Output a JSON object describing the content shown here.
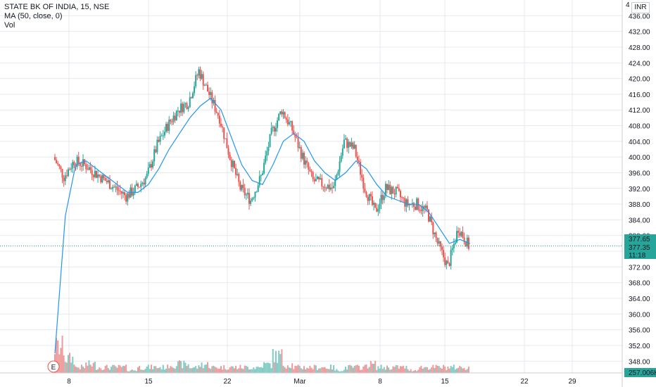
{
  "legend": {
    "symbol_line": "STATE BK OF INDIA, 15, NSE",
    "ma_line": "MA (50, close, 0)",
    "vol_line": "Vol"
  },
  "currency": "INR",
  "top_partial_label": "4",
  "price_labels": {
    "upper": "377.65",
    "last": "377.35",
    "countdown": "11:18",
    "volume": "257.006K"
  },
  "earnings_marker": "E",
  "colors": {
    "up": "#26a69a",
    "down": "#ef5350",
    "ma": "#2196f3",
    "vol_up": "#80cbc4",
    "vol_down": "#ef9a9a",
    "grid": "#e6e9ef",
    "axis_text": "#131722",
    "last_price": "#26a69a"
  },
  "chart_data": {
    "type": "line",
    "title": "STATE BK OF INDIA, 15, NSE",
    "xlabel": "",
    "ylabel": "",
    "x_ticks": [
      "8",
      "15",
      "22",
      "Mar",
      "8",
      "15",
      "22",
      "29"
    ],
    "y_ticks": [
      "348.00",
      "352.00",
      "356.00",
      "360.00",
      "364.00",
      "368.00",
      "372.00",
      "376.00",
      "380.00",
      "384.00",
      "388.00",
      "392.00",
      "396.00",
      "400.00",
      "404.00",
      "408.00",
      "412.00",
      "416.00",
      "420.00",
      "424.00",
      "428.00",
      "432.00",
      "436.00"
    ],
    "ylim": [
      345,
      440
    ],
    "grid": true,
    "series": [
      {
        "name": "STATE BK OF INDIA",
        "kind": "candles",
        "x": [
          "Feb 5",
          "Feb 6",
          "Feb 7",
          "Feb 8",
          "Feb 9",
          "Feb 10",
          "Feb 11",
          "Feb 12",
          "Feb 13",
          "Feb 14",
          "Feb 15",
          "Feb 16",
          "Feb 17",
          "Feb 18",
          "Feb 19",
          "Feb 20",
          "Feb 21",
          "Feb 22",
          "Feb 23",
          "Feb 24",
          "Feb 25",
          "Feb 26",
          "Feb 27",
          "Feb 28",
          "Mar 1",
          "Mar 2",
          "Mar 3",
          "Mar 4",
          "Mar 5",
          "Mar 6",
          "Mar 7",
          "Mar 8",
          "Mar 9",
          "Mar 10",
          "Mar 11",
          "Mar 12",
          "Mar 13",
          "Mar 14",
          "Mar 15",
          "Mar 16",
          "Mar 17"
        ],
        "values": [
          400,
          395,
          399,
          398,
          396,
          394,
          392,
          390,
          392,
          395,
          403,
          408,
          412,
          414,
          422,
          416,
          410,
          400,
          392,
          389,
          395,
          406,
          412,
          407,
          400,
          394,
          393,
          392,
          404,
          402,
          392,
          386,
          392,
          391,
          388,
          388,
          386,
          378,
          372,
          382,
          377.35
        ]
      },
      {
        "name": "MA (50, close, 0)",
        "kind": "line",
        "x": [
          "Feb 5",
          "Feb 6",
          "Feb 7",
          "Feb 8",
          "Feb 9",
          "Feb 10",
          "Feb 11",
          "Feb 12",
          "Feb 13",
          "Feb 14",
          "Feb 15",
          "Feb 16",
          "Feb 17",
          "Feb 18",
          "Feb 19",
          "Feb 20",
          "Feb 21",
          "Feb 22",
          "Feb 23",
          "Feb 24",
          "Feb 25",
          "Feb 26",
          "Feb 27",
          "Feb 28",
          "Mar 1",
          "Mar 2",
          "Mar 3",
          "Mar 4",
          "Mar 5",
          "Mar 6",
          "Mar 7",
          "Mar 8",
          "Mar 9",
          "Mar 10",
          "Mar 11",
          "Mar 12",
          "Mar 13",
          "Mar 14",
          "Mar 15",
          "Mar 16",
          "Mar 17"
        ],
        "values": [
          350,
          385,
          398,
          399,
          397,
          395,
          393,
          391,
          391,
          393,
          397,
          402,
          406,
          410,
          413,
          415,
          412,
          405,
          398,
          394,
          393,
          398,
          404,
          406,
          404,
          399,
          396,
          394,
          396,
          399,
          397,
          393,
          390,
          389,
          388,
          388,
          386,
          382,
          378,
          379,
          378
        ]
      }
    ],
    "volume_series": {
      "name": "Vol",
      "x": [
        "Feb 5",
        "Feb 6",
        "Feb 7",
        "Feb 8",
        "Feb 9",
        "Feb 10",
        "Feb 11",
        "Feb 12",
        "Feb 13",
        "Feb 14",
        "Feb 15",
        "Feb 16",
        "Feb 17",
        "Feb 18",
        "Feb 19",
        "Feb 20",
        "Feb 21",
        "Feb 22",
        "Feb 23",
        "Feb 24",
        "Feb 25",
        "Feb 26",
        "Feb 27",
        "Feb 28",
        "Mar 1",
        "Mar 2",
        "Mar 3",
        "Mar 4",
        "Mar 5",
        "Mar 6",
        "Mar 7",
        "Mar 8",
        "Mar 9",
        "Mar 10",
        "Mar 11",
        "Mar 12",
        "Mar 13",
        "Mar 14",
        "Mar 15",
        "Mar 16",
        "Mar 17"
      ],
      "values": [
        9,
        5,
        2,
        3,
        2,
        2,
        2,
        1,
        2,
        2,
        2,
        3,
        3,
        2,
        3,
        2,
        2,
        2,
        2,
        2,
        3,
        6,
        3,
        2,
        2,
        2,
        2,
        1,
        2,
        2,
        3,
        2,
        2,
        2,
        1,
        2,
        2,
        2,
        2,
        2,
        2
      ]
    },
    "last_price": 377.35
  }
}
